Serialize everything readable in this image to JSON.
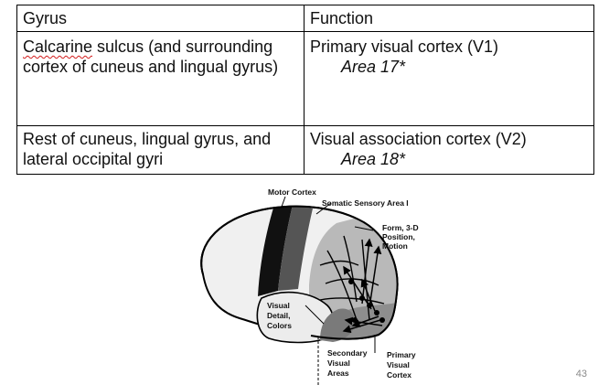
{
  "table": {
    "headers": [
      "Gyrus",
      "Function"
    ],
    "rows": [
      {
        "gyrus_term": "Calcarine",
        "gyrus_rest": " sulcus (and surrounding cortex of cuneus and lingual gyrus)",
        "function": "Primary visual cortex (V1)",
        "area": "Area 17*"
      },
      {
        "gyrus": "Rest of cuneus, lingual gyrus, and lateral occipital gyri",
        "function": "Visual association cortex (V2)",
        "area": "Area 18*"
      }
    ]
  },
  "figure": {
    "labels": {
      "motor_cortex": "Motor Cortex",
      "somatic_sensory": "Somatic Sensory Area I",
      "form_line1": "Form, 3-D",
      "form_line2": "Position,",
      "form_line3": "Motion",
      "visual_line1": "Visual",
      "visual_line2": "Detail,",
      "visual_line3": "Colors",
      "secondary_line1": "Secondary",
      "secondary_line2": "Visual",
      "secondary_line3": "Areas",
      "primary_line1": "Primary",
      "primary_line2": "Visual",
      "primary_line3": "Cortex"
    }
  },
  "slide_number": "43"
}
